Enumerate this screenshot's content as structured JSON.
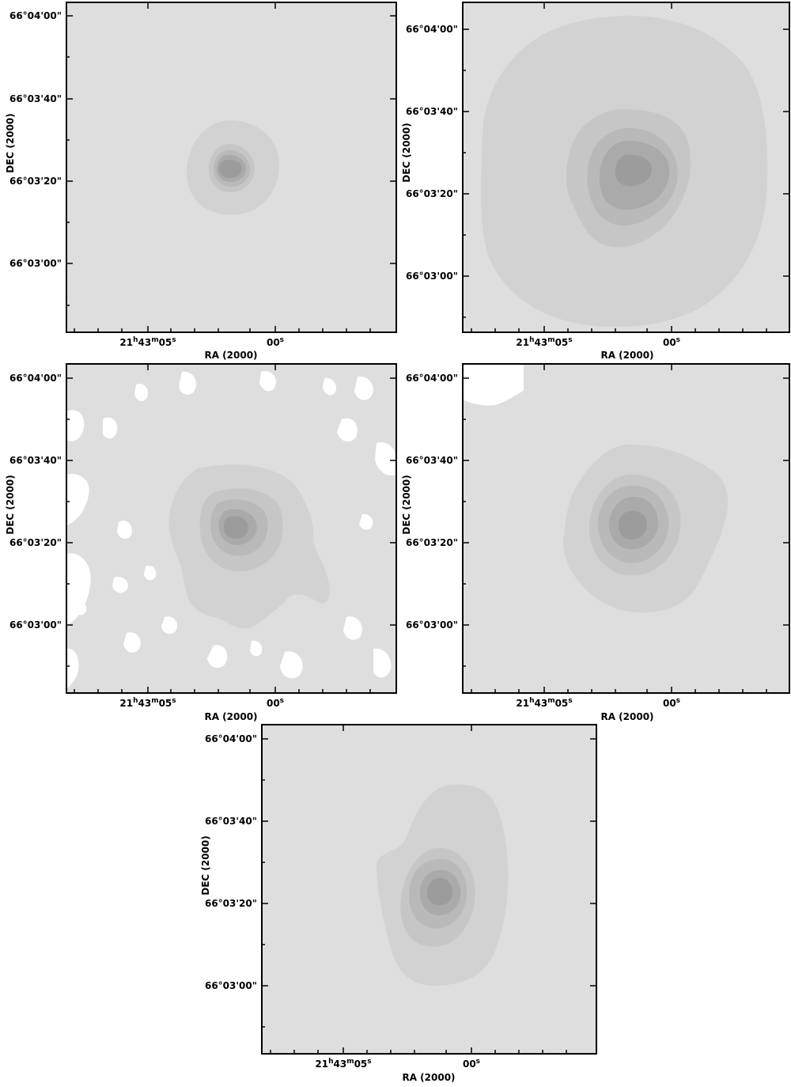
{
  "chart_data": [
    {
      "type": "contour",
      "xlabel": "RA (2000)",
      "ylabel": "DEC (2000)",
      "x_ticks": [
        {
          "major": "21",
          "sup_h": "h",
          "mid": "43",
          "sup_m": "m",
          "minor": "05",
          "sup_s": "s"
        },
        {
          "major": "00",
          "sup_s": "s"
        }
      ],
      "y_ticks": [
        "66°04'00\"",
        "66°03'40\"",
        "66°03'20\"",
        "66°03'00\""
      ],
      "peak": {
        "ra_offset_s": -1.2,
        "dec": "66°03'24\""
      },
      "levels": 5,
      "background_color": "#dedede",
      "fill_colors": [
        "#dedede",
        "#d2d2d2",
        "#c6c6c6",
        "#b9b9b9",
        "#aaaaaa",
        "#9c9c9c"
      ]
    },
    {
      "type": "contour",
      "xlabel": "RA (2000)",
      "ylabel": "DEC (2000)",
      "x_ticks": [
        {
          "major": "21",
          "sup_h": "h",
          "mid": "43",
          "sup_m": "m",
          "minor": "05",
          "sup_s": "s"
        },
        {
          "major": "00",
          "sup_s": "s"
        }
      ],
      "y_ticks": [
        "66°04'00\"",
        "66°03'40\"",
        "66°03'20\"",
        "66°03'00\""
      ],
      "peak": {
        "ra_offset_s": -1.0,
        "dec": "66°03'25\""
      },
      "levels": 5,
      "background_color": "#dedede",
      "fill_colors": [
        "#dedede",
        "#d2d2d2",
        "#c6c6c6",
        "#b9b9b9",
        "#aaaaaa",
        "#9c9c9c"
      ]
    },
    {
      "type": "contour",
      "xlabel": "RA (2000)",
      "ylabel": "DEC (2000)",
      "x_ticks": [
        {
          "major": "21",
          "sup_h": "h",
          "mid": "43",
          "sup_m": "m",
          "minor": "05",
          "sup_s": "s"
        },
        {
          "major": "00",
          "sup_s": "s"
        }
      ],
      "y_ticks": [
        "66°04'00\"",
        "66°03'40\"",
        "66°03'20\"",
        "66°03'00\""
      ],
      "peak": {
        "ra_offset_s": -1.2,
        "dec": "66°03'24\""
      },
      "levels": 5,
      "background_color": "#dedede",
      "fill_colors": [
        "#dedede",
        "#d2d2d2",
        "#c6c6c6",
        "#b9b9b9",
        "#aaaaaa",
        "#9c9c9c"
      ]
    },
    {
      "type": "contour",
      "xlabel": "RA (2000)",
      "ylabel": "DEC (2000)",
      "x_ticks": [
        {
          "major": "21",
          "sup_h": "h",
          "mid": "43",
          "sup_m": "m",
          "minor": "05",
          "sup_s": "s"
        },
        {
          "major": "00",
          "sup_s": "s"
        }
      ],
      "y_ticks": [
        "66°04'00\"",
        "66°03'40\"",
        "66°03'20\"",
        "66°03'00\""
      ],
      "peak": {
        "ra_offset_s": -1.0,
        "dec": "66°03'24\""
      },
      "levels": 5,
      "background_color": "#dedede",
      "fill_colors": [
        "#dedede",
        "#d2d2d2",
        "#c6c6c6",
        "#b9b9b9",
        "#aaaaaa",
        "#9c9c9c"
      ]
    },
    {
      "type": "contour",
      "xlabel": "RA (2000)",
      "ylabel": "DEC (2000)",
      "x_ticks": [
        {
          "major": "21",
          "sup_h": "h",
          "mid": "43",
          "sup_m": "m",
          "minor": "05",
          "sup_s": "s"
        },
        {
          "major": "00",
          "sup_s": "s"
        }
      ],
      "y_ticks": [
        "66°04'00\"",
        "66°03'40\"",
        "66°03'20\"",
        "66°03'00\""
      ],
      "peak": {
        "ra_offset_s": -0.8,
        "dec": "66°03'23\""
      },
      "levels": 5,
      "background_color": "#dedede",
      "fill_colors": [
        "#dedede",
        "#d2d2d2",
        "#c6c6c6",
        "#b9b9b9",
        "#aaaaaa",
        "#9c9c9c"
      ]
    }
  ]
}
